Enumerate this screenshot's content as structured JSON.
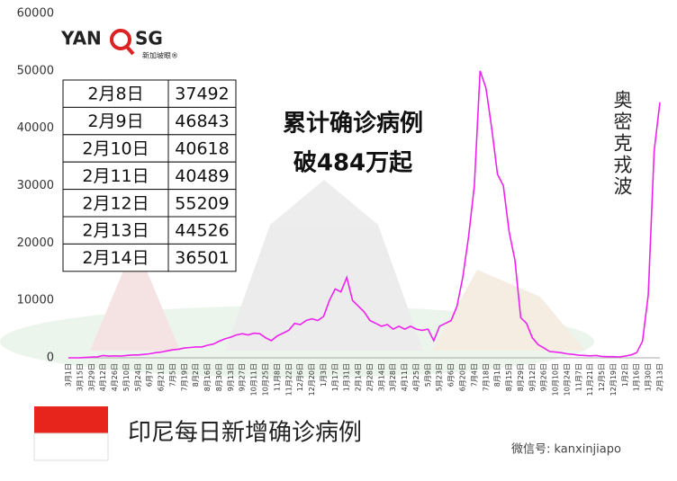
{
  "chart_data": {
    "type": "line",
    "categories": [
      "3月1日",
      null,
      "3月15日",
      null,
      "3月29日",
      null,
      "4月12日",
      null,
      "4月26日",
      null,
      "5月10日",
      null,
      "5月24日",
      null,
      "6月7日",
      null,
      "6月21日",
      null,
      "7月5日",
      null,
      "7月19日",
      null,
      "8月2日",
      null,
      "8月16日",
      null,
      "8月30日",
      null,
      "9月13日",
      null,
      "9月27日",
      null,
      "10月11日",
      null,
      "10月25日",
      null,
      "11月8日",
      null,
      "11月22日",
      null,
      "12月6日",
      null,
      "12月20日",
      null,
      "1月3日",
      null,
      "1月17日",
      null,
      "1月31日",
      null,
      "2月14日",
      null,
      "2月28日",
      null,
      "3月14日",
      null,
      "3月28日",
      null,
      "4月11日",
      null,
      "4月25日",
      null,
      "5月9日",
      null,
      "5月23日",
      null,
      "6月6日",
      null,
      "6月20日",
      null,
      "7月4日",
      null,
      "7月18日",
      null,
      "8月1日",
      null,
      "8月15日",
      null,
      "8月29日",
      null,
      "9月12日",
      null,
      "9月26日",
      null,
      "10月10日",
      null,
      "10月24日",
      null,
      "11月7日",
      null,
      "11月21日",
      null,
      "12月5日",
      null,
      "12月19日",
      null,
      "1月2日",
      null,
      "1月16日",
      null,
      "1月30日",
      null,
      "2月13日"
    ],
    "series": [
      {
        "name": "印尼每日新增确诊病例",
        "color": "#ee22ee",
        "values": [
          2,
          4,
          20,
          60,
          130,
          180,
          400,
          300,
          350,
          300,
          400,
          500,
          500,
          600,
          700,
          900,
          1000,
          1200,
          1400,
          1500,
          1700,
          1800,
          1900,
          1900,
          2200,
          2400,
          2900,
          3300,
          3600,
          4000,
          4200,
          4000,
          4300,
          4200,
          3500,
          3000,
          3800,
          4300,
          4800,
          6000,
          5800,
          6500,
          6800,
          6500,
          7200,
          10000,
          12000,
          11500,
          14000,
          10000,
          9000,
          8000,
          6500,
          6000,
          5500,
          5800,
          5000,
          5500,
          5000,
          5500,
          5000,
          4800,
          5000,
          3000,
          5500,
          6000,
          6500,
          9000,
          14000,
          21000,
          30000,
          50000,
          47000,
          40000,
          32000,
          30000,
          22000,
          17000,
          7000,
          6000,
          3500,
          2300,
          1700,
          1100,
          1000,
          900,
          700,
          600,
          450,
          400,
          350,
          400,
          250,
          200,
          200,
          150,
          300,
          500,
          900,
          2900,
          11000,
          36000,
          44526
        ]
      }
    ],
    "ylim": [
      0,
      60000
    ],
    "yticks": [
      0,
      10000,
      20000,
      30000,
      40000,
      50000,
      60000
    ],
    "grid": false,
    "annotations": {
      "headline": [
        "累计确诊病例",
        "破484万起"
      ],
      "wave": "奥密克戎波"
    }
  },
  "table": {
    "rows": [
      [
        "2月8日",
        "37492"
      ],
      [
        "2月9日",
        "46843"
      ],
      [
        "2月10日",
        "40618"
      ],
      [
        "2月11日",
        "40489"
      ],
      [
        "2月12日",
        "55209"
      ],
      [
        "2月13日",
        "44526"
      ],
      [
        "2月14日",
        "36501"
      ]
    ]
  },
  "logo": {
    "left": "YAN",
    "right": "SG",
    "tagline": "新加坡眼®"
  },
  "watermark": "微信号: kanxinjiapo"
}
